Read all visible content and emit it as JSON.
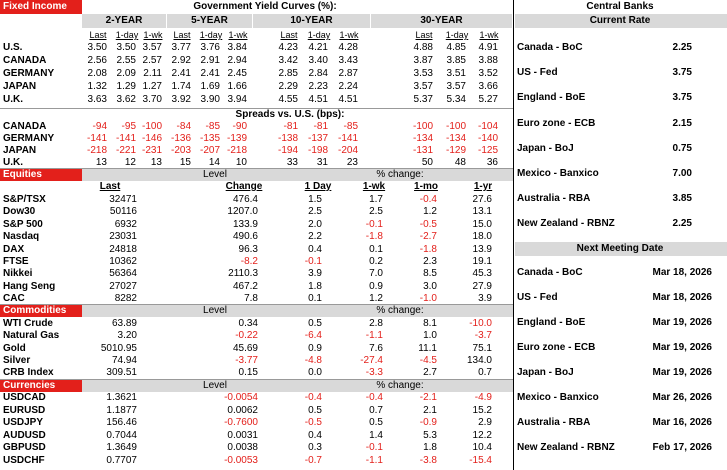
{
  "fixed_income": {
    "label": "Fixed Income",
    "title": "Government Yield Curves (%):",
    "groups": [
      "2-YEAR",
      "5-YEAR",
      "10-YEAR",
      "30-YEAR"
    ],
    "subheaders": [
      "Last",
      "1-day",
      "1-wk"
    ],
    "rows": [
      {
        "name": "U.S.",
        "values": [
          "3.50",
          "3.50",
          "3.57",
          "3.77",
          "3.76",
          "3.84",
          "4.23",
          "4.21",
          "4.28",
          "4.88",
          "4.85",
          "4.91"
        ]
      },
      {
        "name": "CANADA",
        "values": [
          "2.56",
          "2.55",
          "2.57",
          "2.92",
          "2.91",
          "2.94",
          "3.42",
          "3.40",
          "3.43",
          "3.87",
          "3.85",
          "3.88"
        ]
      },
      {
        "name": "GERMANY",
        "values": [
          "2.08",
          "2.09",
          "2.11",
          "2.41",
          "2.41",
          "2.45",
          "2.85",
          "2.84",
          "2.87",
          "3.53",
          "3.51",
          "3.52"
        ]
      },
      {
        "name": "JAPAN",
        "values": [
          "1.32",
          "1.29",
          "1.27",
          "1.74",
          "1.69",
          "1.66",
          "2.29",
          "2.23",
          "2.24",
          "3.57",
          "3.57",
          "3.66"
        ]
      },
      {
        "name": "U.K.",
        "values": [
          "3.63",
          "3.62",
          "3.70",
          "3.92",
          "3.90",
          "3.94",
          "4.55",
          "4.51",
          "4.51",
          "5.37",
          "5.34",
          "5.27"
        ]
      }
    ],
    "spreads_title": "Spreads vs. U.S. (bps):",
    "spreads": [
      {
        "name": "CANADA",
        "values": [
          "-94",
          "-95",
          "-100",
          "-84",
          "-85",
          "-90",
          "-81",
          "-81",
          "-85",
          "-100",
          "-100",
          "-104"
        ]
      },
      {
        "name": "GERMANY",
        "values": [
          "-141",
          "-141",
          "-146",
          "-136",
          "-135",
          "-139",
          "-138",
          "-137",
          "-141",
          "-134",
          "-134",
          "-140"
        ]
      },
      {
        "name": "JAPAN",
        "values": [
          "-218",
          "-221",
          "-231",
          "-203",
          "-207",
          "-218",
          "-194",
          "-198",
          "-204",
          "-131",
          "-129",
          "-125"
        ]
      },
      {
        "name": "U.K.",
        "values": [
          "13",
          "12",
          "13",
          "15",
          "14",
          "10",
          "33",
          "31",
          "23",
          "50",
          "48",
          "36"
        ]
      }
    ]
  },
  "equities": {
    "label": "Equities",
    "level": "Level",
    "change_title": "% change:",
    "headers": [
      "Last",
      "Change",
      "1 Day",
      "1-wk",
      "1-mo",
      "1-yr"
    ],
    "rows": [
      {
        "name": "S&P/TSX",
        "values": [
          "32471",
          "476.4",
          "1.5",
          "1.7",
          "-0.4",
          "27.6"
        ]
      },
      {
        "name": "Dow30",
        "values": [
          "50116",
          "1207.0",
          "2.5",
          "2.5",
          "1.2",
          "13.1"
        ]
      },
      {
        "name": "S&P 500",
        "values": [
          "6932",
          "133.9",
          "2.0",
          "-0.1",
          "-0.5",
          "15.0"
        ]
      },
      {
        "name": "Nasdaq",
        "values": [
          "23031",
          "490.6",
          "2.2",
          "-1.8",
          "-2.7",
          "18.0"
        ]
      },
      {
        "name": "DAX",
        "values": [
          "24818",
          "96.3",
          "0.4",
          "0.1",
          "-1.8",
          "13.9"
        ]
      },
      {
        "name": "FTSE",
        "values": [
          "10362",
          "-8.2",
          "-0.1",
          "0.2",
          "2.3",
          "19.1"
        ]
      },
      {
        "name": "Nikkei",
        "values": [
          "56364",
          "2110.3",
          "3.9",
          "7.0",
          "8.5",
          "45.3"
        ]
      },
      {
        "name": "Hang Seng",
        "values": [
          "27027",
          "467.2",
          "1.8",
          "0.9",
          "3.0",
          "27.9"
        ]
      },
      {
        "name": "CAC",
        "values": [
          "8282",
          "7.8",
          "0.1",
          "1.2",
          "-1.0",
          "3.9"
        ]
      }
    ]
  },
  "commodities": {
    "label": "Commodities",
    "level": "Level",
    "change_title": "% change:",
    "rows": [
      {
        "name": "WTI Crude",
        "values": [
          "63.89",
          "0.34",
          "0.5",
          "2.8",
          "8.1",
          "-10.0"
        ]
      },
      {
        "name": "Natural Gas",
        "values": [
          "3.20",
          "-0.22",
          "-6.4",
          "-1.1",
          "1.0",
          "-3.7"
        ]
      },
      {
        "name": "Gold",
        "values": [
          "5010.95",
          "45.69",
          "0.9",
          "7.6",
          "11.1",
          "75.1"
        ]
      },
      {
        "name": "Silver",
        "values": [
          "74.94",
          "-3.77",
          "-4.8",
          "-27.4",
          "-4.5",
          "134.0"
        ]
      },
      {
        "name": "CRB Index",
        "values": [
          "309.51",
          "0.15",
          "0.0",
          "-3.3",
          "2.7",
          "0.7"
        ]
      }
    ]
  },
  "currencies": {
    "label": "Currencies",
    "level": "Level",
    "change_title": "% change:",
    "rows": [
      {
        "name": "USDCAD",
        "values": [
          "1.3621",
          "-0.0054",
          "-0.4",
          "-0.4",
          "-2.1",
          "-4.9"
        ]
      },
      {
        "name": "EURUSD",
        "values": [
          "1.1877",
          "0.0062",
          "0.5",
          "0.7",
          "2.1",
          "15.2"
        ]
      },
      {
        "name": "USDJPY",
        "values": [
          "156.46",
          "-0.7600",
          "-0.5",
          "0.5",
          "-0.9",
          "2.9"
        ]
      },
      {
        "name": "AUDUSD",
        "values": [
          "0.7044",
          "0.0031",
          "0.4",
          "1.4",
          "5.3",
          "12.2"
        ]
      },
      {
        "name": "GBPUSD",
        "values": [
          "1.3649",
          "0.0038",
          "0.3",
          "-0.1",
          "1.8",
          "10.4"
        ]
      },
      {
        "name": "USDCHF",
        "values": [
          "0.7707",
          "-0.0053",
          "-0.7",
          "-1.1",
          "-3.8",
          "-15.4"
        ]
      }
    ]
  },
  "central_banks": {
    "title": "Central Banks",
    "rate_title": "Current Rate",
    "rates": [
      {
        "name": "Canada - BoC",
        "value": "2.25"
      },
      {
        "name": "US - Fed",
        "value": "3.75"
      },
      {
        "name": "England - BoE",
        "value": "3.75"
      },
      {
        "name": "Euro zone - ECB",
        "value": "2.15"
      },
      {
        "name": "Japan - BoJ",
        "value": "0.75"
      },
      {
        "name": "Mexico - Banxico",
        "value": "7.00"
      },
      {
        "name": "Australia - RBA",
        "value": "3.85"
      },
      {
        "name": "New Zealand - RBNZ",
        "value": "2.25"
      }
    ],
    "meeting_title": "Next Meeting Date",
    "meetings": [
      {
        "name": "Canada - BoC",
        "date": "Mar 18, 2026"
      },
      {
        "name": "US - Fed",
        "date": "Mar 18, 2026"
      },
      {
        "name": "England - BoE",
        "date": "Mar 19, 2026"
      },
      {
        "name": "Euro zone - ECB",
        "date": "Mar 19, 2026"
      },
      {
        "name": "Japan - BoJ",
        "date": "Mar 19, 2026"
      },
      {
        "name": "Mexico - Banxico",
        "date": "Mar 26, 2026"
      },
      {
        "name": "Australia - RBA",
        "date": "Mar 16, 2026"
      },
      {
        "name": "New Zealand - RBNZ",
        "date": "Feb 17, 2026"
      }
    ]
  }
}
